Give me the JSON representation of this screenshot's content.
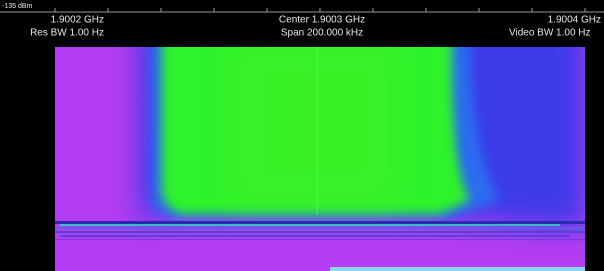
{
  "header": {
    "ref_level": "-135 dBm",
    "start_freq": "1.9002 GHz",
    "res_bw": "Res BW 1.00  Hz",
    "center_freq": "Center 1.9003 GHz",
    "span": "Span 200.000 kHz",
    "stop_freq": "1.9004 GHz",
    "video_bw": "Video BW 1.00  Hz"
  }
}
